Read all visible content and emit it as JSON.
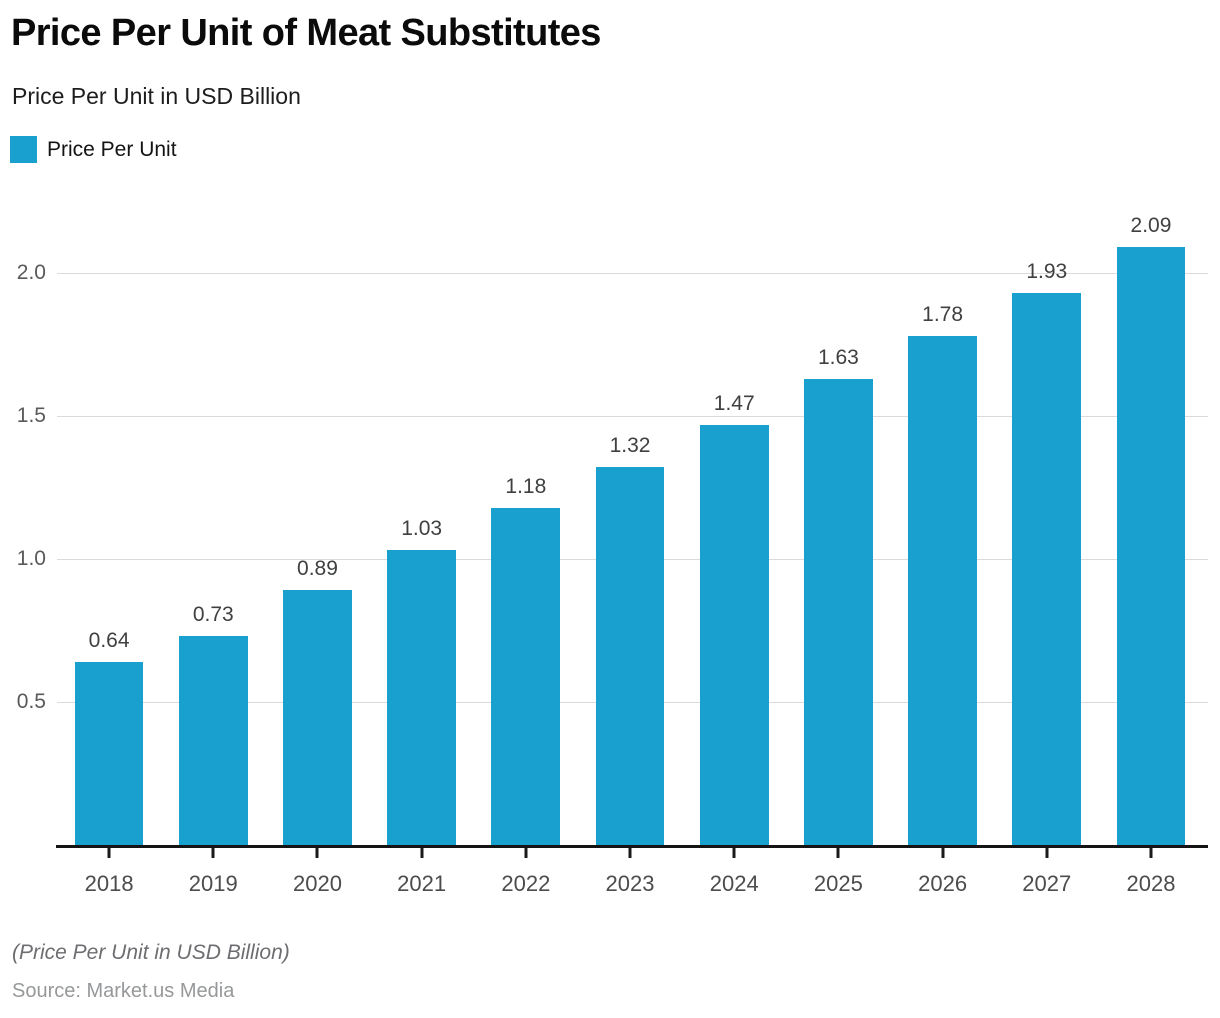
{
  "header": {
    "title": "Price Per Unit of Meat Substitutes",
    "subtitle": "Price Per Unit in USD Billion"
  },
  "legend": {
    "label": "Price Per Unit",
    "swatch_color": "#1AA0CE"
  },
  "chart_data": {
    "type": "bar",
    "title": "Price Per Unit of Meat Substitutes",
    "subtitle": "Price Per Unit in USD Billion",
    "series_name": "Price Per Unit",
    "categories": [
      "2018",
      "2019",
      "2020",
      "2021",
      "2022",
      "2023",
      "2024",
      "2025",
      "2026",
      "2027",
      "2028"
    ],
    "values": [
      0.64,
      0.73,
      0.89,
      1.03,
      1.18,
      1.32,
      1.47,
      1.63,
      1.78,
      1.93,
      2.09
    ],
    "value_labels": [
      "0.64",
      "0.73",
      "0.89",
      "1.03",
      "1.18",
      "1.32",
      "1.47",
      "1.63",
      "1.78",
      "1.93",
      "2.09"
    ],
    "xlabel": "",
    "ylabel": "Price Per Unit in USD Billion",
    "yticks": [
      0.5,
      1.0,
      1.5,
      2.0
    ],
    "ytick_labels": [
      "0.5",
      "1.0",
      "1.5",
      "2.0"
    ],
    "ylim": [
      0,
      2.31
    ],
    "grid": true,
    "legend_position": "top-left",
    "bar_color": "#1AA0CE",
    "gridline_color": "#d9dadb",
    "value_label_color": "#3f4040",
    "axis_color": "#141414"
  },
  "footer": {
    "note": "(Price Per Unit in USD Billion)",
    "source": "Source: Market.us Media"
  }
}
